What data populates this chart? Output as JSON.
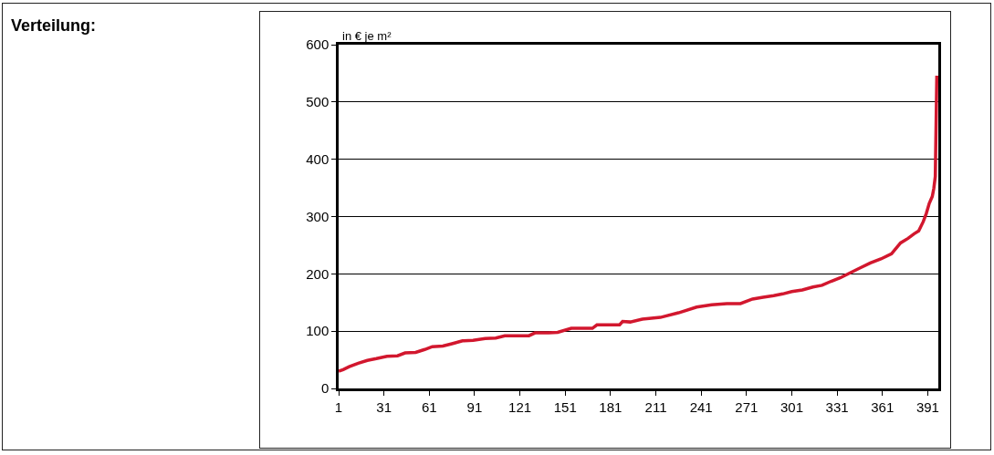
{
  "chart_data": {
    "type": "line",
    "title": "Verteilung:",
    "ylabel": "in € je m²",
    "x": [
      1,
      4,
      8,
      14,
      20,
      26,
      33,
      40,
      45,
      52,
      58,
      63,
      70,
      76,
      83,
      90,
      98,
      105,
      111,
      120,
      127,
      131,
      140,
      146,
      155,
      162,
      169,
      172,
      180,
      187,
      189,
      194,
      202,
      214,
      226,
      238,
      248,
      258,
      267,
      275,
      282,
      289,
      295,
      301,
      308,
      315,
      321,
      327,
      333,
      339,
      346,
      353,
      360,
      367,
      373,
      378,
      382,
      385,
      388,
      390,
      392,
      394,
      395,
      396,
      397
    ],
    "series": [
      {
        "color": "#d2172e",
        "values": [
          30,
          33,
          38,
          44,
          49,
          52,
          56,
          57,
          62,
          63,
          68,
          73,
          74,
          78,
          83,
          84,
          87,
          88,
          92,
          92,
          92,
          97,
          97,
          98,
          105,
          105,
          105,
          111,
          111,
          111,
          117,
          116,
          121,
          124,
          132,
          142,
          146,
          148,
          148,
          156,
          159,
          162,
          165,
          169,
          172,
          177,
          180,
          187,
          193,
          201,
          210,
          219,
          226,
          235,
          254,
          262,
          270,
          275,
          291,
          305,
          323,
          335,
          349,
          370,
          546
        ]
      }
    ],
    "xlim": [
      1,
      398
    ],
    "xticks": [
      1,
      31,
      61,
      91,
      121,
      151,
      181,
      211,
      241,
      271,
      301,
      331,
      361,
      391
    ],
    "ylim": [
      0,
      600
    ],
    "yticks": [
      0,
      100,
      200,
      300,
      400,
      500,
      600
    ],
    "grid": "y",
    "marker": "none",
    "line_style": "solid"
  }
}
